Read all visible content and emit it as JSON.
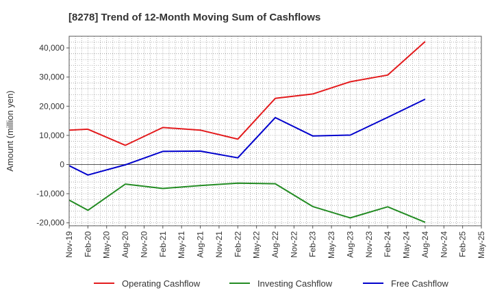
{
  "chart_data": {
    "type": "line",
    "title": "[8278]  Trend of 12-Month Moving Sum of Cashflows",
    "ylabel": "Amount (million yen)",
    "xlabel": "",
    "x_ticks": [
      "Nov-19",
      "Feb-20",
      "May-20",
      "Aug-20",
      "Nov-20",
      "Feb-21",
      "May-21",
      "Aug-21",
      "Nov-21",
      "Feb-22",
      "May-22",
      "Aug-22",
      "Nov-22",
      "Feb-23",
      "May-23",
      "Aug-23",
      "Nov-23",
      "Feb-24",
      "May-24",
      "Aug-24",
      "Nov-24",
      "Feb-25",
      "May-25"
    ],
    "y_ticks": [
      -20000,
      -10000,
      0,
      10000,
      20000,
      30000,
      40000
    ],
    "y_tick_labels": [
      "-20,000",
      "-10,000",
      "0",
      "10,000",
      "20,000",
      "30,000",
      "40,000"
    ],
    "ylim": [
      -21000,
      44000
    ],
    "grid": true,
    "legend_position": "bottom",
    "series": [
      {
        "name": "Operating Cashflow",
        "color": "#e31a1c",
        "points": [
          {
            "x": "Nov-19",
            "y": 11800
          },
          {
            "x": "Feb-20",
            "y": 12100
          },
          {
            "x": "Aug-20",
            "y": 6600
          },
          {
            "x": "Feb-21",
            "y": 12700
          },
          {
            "x": "Aug-21",
            "y": 11800
          },
          {
            "x": "Feb-22",
            "y": 8700
          },
          {
            "x": "Aug-22",
            "y": 22700
          },
          {
            "x": "Feb-23",
            "y": 24200
          },
          {
            "x": "Aug-23",
            "y": 28400
          },
          {
            "x": "Feb-24",
            "y": 30700
          },
          {
            "x": "Aug-24",
            "y": 42200
          }
        ]
      },
      {
        "name": "Investing Cashflow",
        "color": "#228b22",
        "points": [
          {
            "x": "Nov-19",
            "y": -12200
          },
          {
            "x": "Feb-20",
            "y": -15700
          },
          {
            "x": "Aug-20",
            "y": -6700
          },
          {
            "x": "Feb-21",
            "y": -8200
          },
          {
            "x": "Aug-21",
            "y": -7200
          },
          {
            "x": "Feb-22",
            "y": -6400
          },
          {
            "x": "Aug-22",
            "y": -6600
          },
          {
            "x": "Feb-23",
            "y": -14400
          },
          {
            "x": "Aug-23",
            "y": -18300
          },
          {
            "x": "Feb-24",
            "y": -14500
          },
          {
            "x": "Aug-24",
            "y": -19800
          }
        ]
      },
      {
        "name": "Free Cashflow",
        "color": "#0000cc",
        "points": [
          {
            "x": "Nov-19",
            "y": -400
          },
          {
            "x": "Feb-20",
            "y": -3600
          },
          {
            "x": "Aug-20",
            "y": -100
          },
          {
            "x": "Feb-21",
            "y": 4500
          },
          {
            "x": "Aug-21",
            "y": 4600
          },
          {
            "x": "Feb-22",
            "y": 2300
          },
          {
            "x": "Aug-22",
            "y": 16100
          },
          {
            "x": "Feb-23",
            "y": 9800
          },
          {
            "x": "Aug-23",
            "y": 10100
          },
          {
            "x": "Feb-24",
            "y": 16200
          },
          {
            "x": "Aug-24",
            "y": 22400
          }
        ]
      }
    ]
  }
}
